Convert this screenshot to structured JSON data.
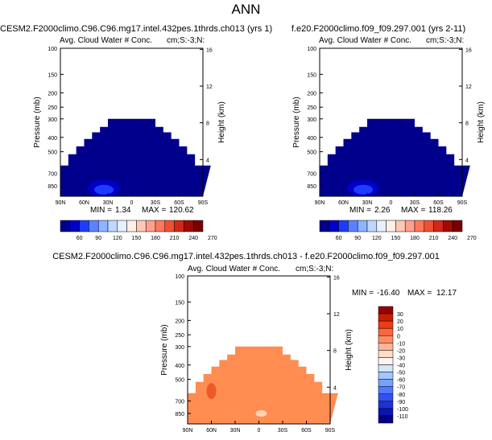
{
  "page": {
    "title": "ANN"
  },
  "chart_data": [
    {
      "type": "heatmap",
      "title": "CESM2.F2000climo.C96.C96.mg17.intel.432pes.1thrds.ch013 (yrs 1)",
      "subtitle_left": "Avg. Cloud Water # Conc.",
      "subtitle_right": "cm;S:-3;N:",
      "xlabel": "",
      "ylabel": "Pressure (mb)",
      "y2label": "Height (km)",
      "x_ticks": [
        "90N",
        "60N",
        "30N",
        "0",
        "30S",
        "60S",
        "90S"
      ],
      "y_ticks": [
        100,
        150,
        200,
        250,
        300,
        400,
        500,
        700,
        850
      ],
      "y2_ticks": [
        16,
        12,
        8,
        4
      ],
      "ylim": [
        1000,
        100
      ],
      "log_y": true,
      "stats": {
        "min": "1.34",
        "max": "120.62"
      },
      "colorbar": {
        "labels": [
          "60",
          "90",
          "120",
          "150",
          "180",
          "210",
          "240",
          "270"
        ],
        "colors": [
          "#00008c",
          "#0000c8",
          "#1e3cff",
          "#5a82ff",
          "#8cb4ff",
          "#bed7ff",
          "#e6f0ff",
          "#fff0e6",
          "#ffc8b4",
          "#ffa08c",
          "#ff785a",
          "#f05032",
          "#d22814",
          "#a00a00",
          "#780000"
        ]
      }
    },
    {
      "type": "heatmap",
      "title": "f.e20.F2000climo.f09_f09.297.001 (yrs 2-11)",
      "subtitle_left": "Avg. Cloud Water # Conc.",
      "subtitle_right": "cm;S:-3;N:",
      "xlabel": "",
      "ylabel": "Pressure (mb)",
      "y2label": "Height (km)",
      "x_ticks": [
        "90N",
        "60N",
        "30N",
        "0",
        "30S",
        "60S",
        "90S"
      ],
      "y_ticks": [
        100,
        150,
        200,
        250,
        300,
        400,
        500,
        700,
        850
      ],
      "y2_ticks": [
        16,
        12,
        8,
        4
      ],
      "ylim": [
        1000,
        100
      ],
      "log_y": true,
      "stats": {
        "min": "2.26",
        "max": "118.26"
      },
      "colorbar": {
        "labels": [
          "60",
          "90",
          "120",
          "150",
          "180",
          "210",
          "240",
          "270"
        ],
        "colors": [
          "#00008c",
          "#0000c8",
          "#1e3cff",
          "#5a82ff",
          "#8cb4ff",
          "#bed7ff",
          "#e6f0ff",
          "#fff0e6",
          "#ffc8b4",
          "#ffa08c",
          "#ff785a",
          "#f05032",
          "#d22814",
          "#a00a00",
          "#780000"
        ]
      }
    },
    {
      "type": "heatmap",
      "title": "CESM2.F2000climo.C96.C96.mg17.intel.432pes.1thrds.ch013 - f.e20.F2000climo.f09_f09.297.001",
      "subtitle_left": "Avg. Cloud Water # Conc.",
      "subtitle_right": "cm;S:-3;N:",
      "xlabel": "",
      "ylabel": "Pressure (mb)",
      "y2label": "Height (km)",
      "x_ticks": [
        "90N",
        "60N",
        "30N",
        "0",
        "30S",
        "60S",
        "90S"
      ],
      "y_ticks": [
        100,
        150,
        200,
        250,
        300,
        400,
        500,
        700,
        850
      ],
      "y2_ticks": [
        16,
        12,
        8,
        4
      ],
      "ylim": [
        1000,
        100
      ],
      "log_y": true,
      "stats": {
        "min": "-16.40",
        "max": "12.17"
      },
      "colorbar": {
        "labels": [
          "30",
          "20",
          "10",
          "0",
          "-10",
          "-20",
          "-30",
          "-40",
          "-50",
          "-60",
          "-70",
          "-80",
          "-90",
          "-100",
          "-110"
        ],
        "colors": [
          "#960000",
          "#c81e00",
          "#eb3c14",
          "#ff643c",
          "#ff8c64",
          "#ffb496",
          "#ffdcc8",
          "#fff5f0",
          "#d2e6ff",
          "#a0c8ff",
          "#78a0ff",
          "#5078ff",
          "#3250f0",
          "#1e32d2",
          "#0a14b4",
          "#00008c"
        ]
      }
    }
  ]
}
